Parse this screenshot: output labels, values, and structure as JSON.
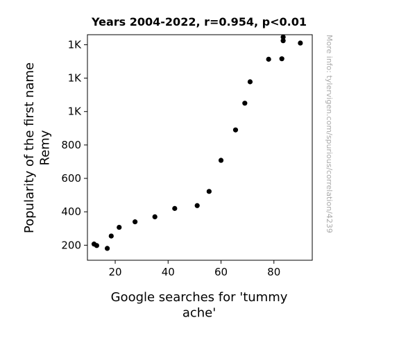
{
  "chart_data": {
    "type": "scatter",
    "title": "Years 2004-2022, r=0.954, p<0.01",
    "xlabel": "Google searches for 'tummy ache'",
    "ylabel": "Popularity of the first name Remy",
    "xlim": [
      9.5,
      94.5
    ],
    "ylim": [
      110,
      1460
    ],
    "xticks": [
      20,
      40,
      60,
      80
    ],
    "yticks": [
      {
        "value": 200,
        "label": "200"
      },
      {
        "value": 400,
        "label": "400"
      },
      {
        "value": 600,
        "label": "600"
      },
      {
        "value": 800,
        "label": "800"
      },
      {
        "value": 1000,
        "label": "1K"
      },
      {
        "value": 1200,
        "label": "1K"
      },
      {
        "value": 1400,
        "label": "1K"
      }
    ],
    "grid": false,
    "marker_color": "#000000",
    "points": [
      {
        "x": 12.0,
        "y": 207
      },
      {
        "x": 13.0,
        "y": 198
      },
      {
        "x": 17.0,
        "y": 181
      },
      {
        "x": 18.5,
        "y": 255
      },
      {
        "x": 21.5,
        "y": 307
      },
      {
        "x": 27.5,
        "y": 340
      },
      {
        "x": 35.0,
        "y": 370
      },
      {
        "x": 42.5,
        "y": 420
      },
      {
        "x": 51.0,
        "y": 437
      },
      {
        "x": 55.5,
        "y": 522
      },
      {
        "x": 60.0,
        "y": 708
      },
      {
        "x": 65.5,
        "y": 890
      },
      {
        "x": 69.0,
        "y": 1050
      },
      {
        "x": 71.0,
        "y": 1178
      },
      {
        "x": 78.0,
        "y": 1313
      },
      {
        "x": 83.0,
        "y": 1316
      },
      {
        "x": 83.5,
        "y": 1446
      },
      {
        "x": 83.5,
        "y": 1424
      },
      {
        "x": 90.0,
        "y": 1410
      }
    ]
  },
  "watermark": "More info: tylervigen.com/spurious/correlation/4239"
}
